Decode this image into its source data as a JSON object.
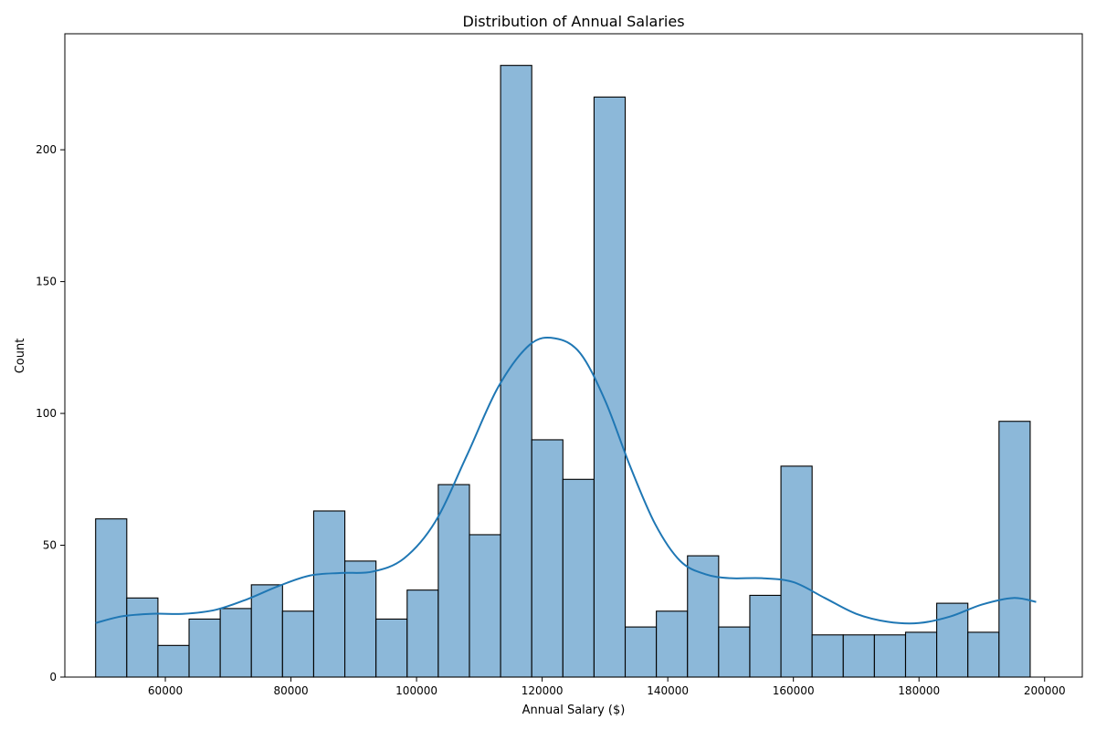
{
  "chart_data": {
    "type": "histogram",
    "title": "Distribution of Annual Salaries",
    "xlabel": "Annual Salary ($)",
    "ylabel": "Count",
    "xlim": [
      44000,
      206000
    ],
    "ylim": [
      0,
      244
    ],
    "x_ticks": [
      60000,
      80000,
      100000,
      120000,
      140000,
      160000,
      180000,
      200000
    ],
    "y_ticks": [
      0,
      50,
      100,
      150,
      200
    ],
    "bin_start": 48900,
    "bin_width": 4960,
    "counts": [
      60,
      30,
      12,
      22,
      26,
      35,
      25,
      63,
      44,
      22,
      33,
      73,
      54,
      232,
      90,
      75,
      220,
      19,
      25,
      46,
      19,
      31,
      80,
      16,
      16,
      16,
      17,
      28,
      17,
      97
    ],
    "bar_color": "#8cb8d9",
    "edge_color": "#000000",
    "kde_color": "#1f77b4",
    "kde": {
      "x": [
        48900,
        53000,
        58000,
        63000,
        68000,
        73000,
        78000,
        83000,
        88000,
        93000,
        98000,
        103000,
        108000,
        113000,
        118000,
        122000,
        126000,
        130000,
        134000,
        138000,
        142000,
        146000,
        150000,
        155000,
        160000,
        165000,
        170000,
        175000,
        180000,
        185000,
        190000,
        195000,
        198650
      ],
      "y": [
        20.5,
        23,
        24,
        24,
        25.5,
        29.5,
        34.5,
        38.5,
        39.5,
        40,
        45,
        59,
        84,
        110,
        126,
        128.5,
        123,
        105,
        80,
        58,
        44,
        39,
        37.5,
        37.5,
        36,
        30,
        24,
        21,
        20.5,
        23,
        27.5,
        30,
        28.5
      ]
    }
  }
}
